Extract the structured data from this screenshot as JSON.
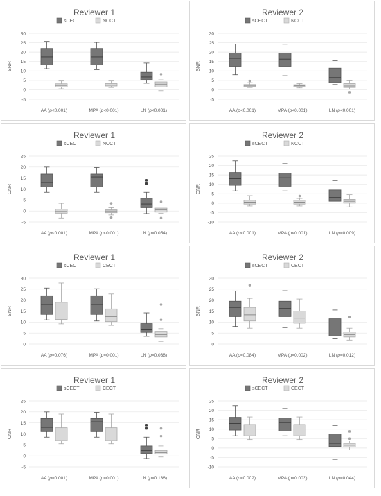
{
  "colors": {
    "series_a": "#767676",
    "series_b": "#d9d9d9",
    "grid": "#e6e6e6",
    "outlier_a": "#404040",
    "outlier_b": "#a6a6a6"
  },
  "chart_data": [
    {
      "type": "box",
      "title": "Reviewer 1",
      "ylabel": "SNR",
      "ylim": [
        -5,
        30
      ],
      "yticks": [
        -5,
        0,
        5,
        10,
        15,
        20,
        25,
        30
      ],
      "legend": [
        "sCECT",
        "NCCT"
      ],
      "legend_position": "top",
      "categories": [
        {
          "name": "AA",
          "p": "p",
          "rest": "<0.001)"
        },
        {
          "name": "MPA",
          "p": "p",
          "rest": "<0.001)"
        },
        {
          "name": "LN",
          "p": "p",
          "rest": "<0.001)"
        }
      ],
      "series": [
        {
          "name": "sCECT",
          "boxes": [
            {
              "min": 11.2,
              "q1": 13.3,
              "median": 17.5,
              "q3": 22.0,
              "max": 25.7,
              "outliers": []
            },
            {
              "min": 10.7,
              "q1": 13.3,
              "median": 17.5,
              "q3": 22.0,
              "max": 25.2,
              "outliers": []
            },
            {
              "min": 3.5,
              "q1": 5.3,
              "median": 6.8,
              "q3": 9.3,
              "max": 14.2,
              "outliers": []
            }
          ]
        },
        {
          "name": "NCCT",
          "boxes": [
            {
              "min": 0.5,
              "q1": 1.5,
              "median": 2.3,
              "q3": 3.2,
              "max": 4.7,
              "outliers": []
            },
            {
              "min": 1.2,
              "q1": 2.0,
              "median": 2.5,
              "q3": 3.3,
              "max": 4.7,
              "outliers": []
            },
            {
              "min": -0.5,
              "q1": 1.5,
              "median": 3.0,
              "q3": 4.2,
              "max": 5.3,
              "outliers": [
                8.3
              ]
            }
          ]
        }
      ]
    },
    {
      "type": "box",
      "title": "Reviewer 2",
      "ylabel": "SNR",
      "ylim": [
        -5,
        30
      ],
      "yticks": [
        -5,
        0,
        5,
        10,
        15,
        20,
        25,
        30
      ],
      "legend": [
        "sCECT",
        "NCCT"
      ],
      "legend_position": "top",
      "categories": [
        {
          "name": "AA",
          "p": "p",
          "rest": "<0.001)"
        },
        {
          "name": "MPA",
          "p": "p",
          "rest": "<0.001)"
        },
        {
          "name": "LN",
          "p": "p",
          "rest": "<0.001)"
        }
      ],
      "series": [
        {
          "name": "sCECT",
          "boxes": [
            {
              "min": 8.0,
              "q1": 12.5,
              "median": 16.7,
              "q3": 19.5,
              "max": 24.3,
              "outliers": []
            },
            {
              "min": 7.5,
              "q1": 12.5,
              "median": 16.3,
              "q3": 19.5,
              "max": 24.2,
              "outliers": []
            },
            {
              "min": 2.8,
              "q1": 3.8,
              "median": 6.5,
              "q3": 11.5,
              "max": 15.5,
              "outliers": []
            }
          ]
        },
        {
          "name": "NCCT",
          "boxes": [
            {
              "min": 1.2,
              "q1": 1.8,
              "median": 2.3,
              "q3": 2.8,
              "max": 3.8,
              "outliers": [
                4.7
              ]
            },
            {
              "min": 1.0,
              "q1": 1.7,
              "median": 2.2,
              "q3": 2.7,
              "max": 3.3,
              "outliers": []
            },
            {
              "min": 0.3,
              "q1": 1.2,
              "median": 2.0,
              "q3": 3.3,
              "max": 4.8,
              "outliers": [
                -1.3
              ]
            }
          ]
        }
      ]
    },
    {
      "type": "box",
      "title": "Reviewer 1",
      "ylabel": "CNR",
      "ylim": [
        -5,
        25
      ],
      "yticks": [
        -5,
        0,
        5,
        10,
        15,
        20,
        25
      ],
      "legend": [
        "sCECT",
        "NCCT"
      ],
      "legend_position": "top",
      "categories": [
        {
          "name": "AA",
          "p": "p",
          "rest": "<0.001)"
        },
        {
          "name": "MPA",
          "p": "p",
          "rest": "<0.001)"
        },
        {
          "name": "LN",
          "p": "p",
          "rest": "=0.054)"
        }
      ],
      "series": [
        {
          "name": "sCECT",
          "boxes": [
            {
              "min": 8.5,
              "q1": 11.0,
              "median": 13.0,
              "q3": 16.8,
              "max": 20.0,
              "outliers": []
            },
            {
              "min": 8.5,
              "q1": 11.0,
              "median": 15.5,
              "q3": 16.8,
              "max": 19.8,
              "outliers": []
            },
            {
              "min": -1.2,
              "q1": 1.5,
              "median": 3.2,
              "q3": 5.8,
              "max": 8.5,
              "outliers": [
                12.5,
                14.0
              ]
            }
          ]
        },
        {
          "name": "NCCT",
          "boxes": [
            {
              "min": -3.2,
              "q1": -1.0,
              "median": -0.2,
              "q3": 0.8,
              "max": 3.5,
              "outliers": []
            },
            {
              "min": -1.8,
              "q1": -0.8,
              "median": 0.0,
              "q3": 0.5,
              "max": 1.5,
              "outliers": [
                3.5,
                -3.0
              ]
            },
            {
              "min": -1.0,
              "q1": -0.5,
              "median": 0.5,
              "q3": 1.3,
              "max": 2.7,
              "outliers": [
                4.2,
                -3.2
              ]
            }
          ]
        }
      ]
    },
    {
      "type": "box",
      "title": "Reviewer 2",
      "ylabel": "CNR",
      "ylim": [
        -10,
        25
      ],
      "yticks": [
        -10,
        -5,
        0,
        5,
        10,
        15,
        20,
        25
      ],
      "legend": [
        "sCECT",
        "NCCT"
      ],
      "legend_position": "top",
      "categories": [
        {
          "name": "AA",
          "p": "p",
          "rest": "<0.001)"
        },
        {
          "name": "MPA",
          "p": "p",
          "rest": "<0.001)"
        },
        {
          "name": "LN",
          "p": "p",
          "rest": "=0.009)"
        }
      ],
      "series": [
        {
          "name": "sCECT",
          "boxes": [
            {
              "min": 6.5,
              "q1": 9.5,
              "median": 13.0,
              "q3": 16.3,
              "max": 22.5,
              "outliers": []
            },
            {
              "min": 6.5,
              "q1": 9.0,
              "median": 13.5,
              "q3": 16.0,
              "max": 21.0,
              "outliers": []
            },
            {
              "min": -5.8,
              "q1": 1.0,
              "median": 3.0,
              "q3": 7.0,
              "max": 12.0,
              "outliers": []
            }
          ]
        },
        {
          "name": "NCCT",
          "boxes": [
            {
              "min": -1.5,
              "q1": -0.5,
              "median": 0.5,
              "q3": 1.5,
              "max": 4.0,
              "outliers": []
            },
            {
              "min": -1.5,
              "q1": -0.5,
              "median": 0.5,
              "q3": 1.5,
              "max": 2.5,
              "outliers": [
                3.8
              ]
            },
            {
              "min": -2.0,
              "q1": 0.0,
              "median": 1.0,
              "q3": 2.0,
              "max": 4.5,
              "outliers": []
            }
          ]
        }
      ]
    },
    {
      "type": "box",
      "title": "Reviewer 1",
      "ylabel": "SNR",
      "ylim": [
        0,
        30
      ],
      "yticks": [
        0,
        5,
        10,
        15,
        20,
        25,
        30
      ],
      "legend": [
        "sCECT",
        "CECT"
      ],
      "legend_position": "top",
      "categories": [
        {
          "name": "AA",
          "p": "p",
          "rest": "=0.076)"
        },
        {
          "name": "MPA",
          "p": "p",
          "rest": "=0.001)"
        },
        {
          "name": "LN",
          "p": "p",
          "rest": "=0.038)"
        }
      ],
      "series": [
        {
          "name": "sCECT",
          "boxes": [
            {
              "min": 11.0,
              "q1": 13.5,
              "median": 18.0,
              "q3": 22.0,
              "max": 25.5,
              "outliers": []
            },
            {
              "min": 10.5,
              "q1": 13.5,
              "median": 18.0,
              "q3": 22.0,
              "max": 25.2,
              "outliers": []
            },
            {
              "min": 3.5,
              "q1": 5.3,
              "median": 6.8,
              "q3": 9.3,
              "max": 14.2,
              "outliers": []
            }
          ]
        },
        {
          "name": "CECT",
          "boxes": [
            {
              "min": 9.2,
              "q1": 11.2,
              "median": 15.0,
              "q3": 19.0,
              "max": 27.8,
              "outliers": []
            },
            {
              "min": 8.5,
              "q1": 10.2,
              "median": 12.5,
              "q3": 16.0,
              "max": 22.8,
              "outliers": []
            },
            {
              "min": 1.2,
              "q1": 3.2,
              "median": 4.3,
              "q3": 5.8,
              "max": 7.0,
              "outliers": [
                11.0,
                18.0
              ]
            }
          ]
        }
      ]
    },
    {
      "type": "box",
      "title": "Reviewer 2",
      "ylabel": "SNR",
      "ylim": [
        0,
        30
      ],
      "yticks": [
        0,
        5,
        10,
        15,
        20,
        25,
        30
      ],
      "legend": [
        "sCECT",
        "CECT"
      ],
      "legend_position": "top",
      "categories": [
        {
          "name": "AA",
          "p": "p",
          "rest": "=0.084)"
        },
        {
          "name": "MPA",
          "p": "p",
          "rest": "=0.002)"
        },
        {
          "name": "LN",
          "p": "p",
          "rest": "=0.012)"
        }
      ],
      "series": [
        {
          "name": "sCECT",
          "boxes": [
            {
              "min": 8.0,
              "q1": 12.5,
              "median": 16.7,
              "q3": 19.5,
              "max": 24.2,
              "outliers": []
            },
            {
              "min": 7.5,
              "q1": 12.5,
              "median": 16.2,
              "q3": 19.5,
              "max": 24.3,
              "outliers": []
            },
            {
              "min": 2.7,
              "q1": 3.7,
              "median": 6.5,
              "q3": 11.5,
              "max": 15.5,
              "outliers": []
            }
          ]
        },
        {
          "name": "CECT",
          "boxes": [
            {
              "min": 7.2,
              "q1": 10.5,
              "median": 13.3,
              "q3": 16.7,
              "max": 20.8,
              "outliers": [
                26.8
              ]
            },
            {
              "min": 7.2,
              "q1": 9.5,
              "median": 11.8,
              "q3": 15.0,
              "max": 20.5,
              "outliers": []
            },
            {
              "min": 1.8,
              "q1": 3.2,
              "median": 4.3,
              "q3": 5.5,
              "max": 7.2,
              "outliers": [
                12.3
              ]
            }
          ]
        }
      ]
    },
    {
      "type": "box",
      "title": "Reviewer 1",
      "ylabel": "CNR",
      "ylim": [
        -5,
        25
      ],
      "yticks": [
        -5,
        0,
        5,
        10,
        15,
        20,
        25
      ],
      "legend": [
        "sCECT",
        "CECT"
      ],
      "legend_position": "top",
      "categories": [
        {
          "name": "AA",
          "p": "p",
          "rest": "=0.001)"
        },
        {
          "name": "MPA",
          "p": "p",
          "rest": "=0.001)"
        },
        {
          "name": "LN",
          "p": "p",
          "rest": "=0.136)"
        }
      ],
      "series": [
        {
          "name": "sCECT",
          "boxes": [
            {
              "min": 8.5,
              "q1": 11.0,
              "median": 13.0,
              "q3": 17.0,
              "max": 20.0,
              "outliers": []
            },
            {
              "min": 8.5,
              "q1": 11.0,
              "median": 15.5,
              "q3": 17.0,
              "max": 19.8,
              "outliers": []
            },
            {
              "min": -1.2,
              "q1": 1.0,
              "median": 2.5,
              "q3": 4.5,
              "max": 8.5,
              "outliers": [
                12.5,
                14.0
              ]
            }
          ]
        },
        {
          "name": "CECT",
          "boxes": [
            {
              "min": 5.5,
              "q1": 7.0,
              "median": 10.0,
              "q3": 12.8,
              "max": 19.0,
              "outliers": []
            },
            {
              "min": 5.5,
              "q1": 7.0,
              "median": 10.0,
              "q3": 12.8,
              "max": 19.0,
              "outliers": []
            },
            {
              "min": -0.5,
              "q1": 0.8,
              "median": 1.5,
              "q3": 2.5,
              "max": 4.5,
              "outliers": [
                9.0,
                12.5
              ]
            }
          ]
        }
      ]
    },
    {
      "type": "box",
      "title": "Reviewer 2",
      "ylabel": "CNR",
      "ylim": [
        -10,
        25
      ],
      "yticks": [
        -10,
        -5,
        0,
        5,
        10,
        15,
        20,
        25
      ],
      "legend": [
        "sCECT",
        "CECT"
      ],
      "legend_position": "top",
      "categories": [
        {
          "name": "AA",
          "p": "p",
          "rest": "=0.002)"
        },
        {
          "name": "MPA",
          "p": "p",
          "rest": "=0.003)"
        },
        {
          "name": "LN",
          "p": "p",
          "rest": "=0.044)"
        }
      ],
      "series": [
        {
          "name": "sCECT",
          "boxes": [
            {
              "min": 6.5,
              "q1": 9.5,
              "median": 13.0,
              "q3": 16.3,
              "max": 22.5,
              "outliers": []
            },
            {
              "min": 6.5,
              "q1": 9.0,
              "median": 13.5,
              "q3": 16.0,
              "max": 21.0,
              "outliers": []
            },
            {
              "min": -6.0,
              "q1": 0.8,
              "median": 2.5,
              "q3": 7.5,
              "max": 12.0,
              "outliers": []
            }
          ]
        },
        {
          "name": "CECT",
          "boxes": [
            {
              "min": 4.5,
              "q1": 6.5,
              "median": 9.0,
              "q3": 12.5,
              "max": 16.5,
              "outliers": []
            },
            {
              "min": 4.5,
              "q1": 6.5,
              "median": 9.0,
              "q3": 12.5,
              "max": 16.5,
              "outliers": []
            },
            {
              "min": -1.0,
              "q1": 0.5,
              "median": 1.5,
              "q3": 2.5,
              "max": 3.8,
              "outliers": [
                5.0,
                8.8
              ]
            }
          ]
        }
      ]
    }
  ]
}
